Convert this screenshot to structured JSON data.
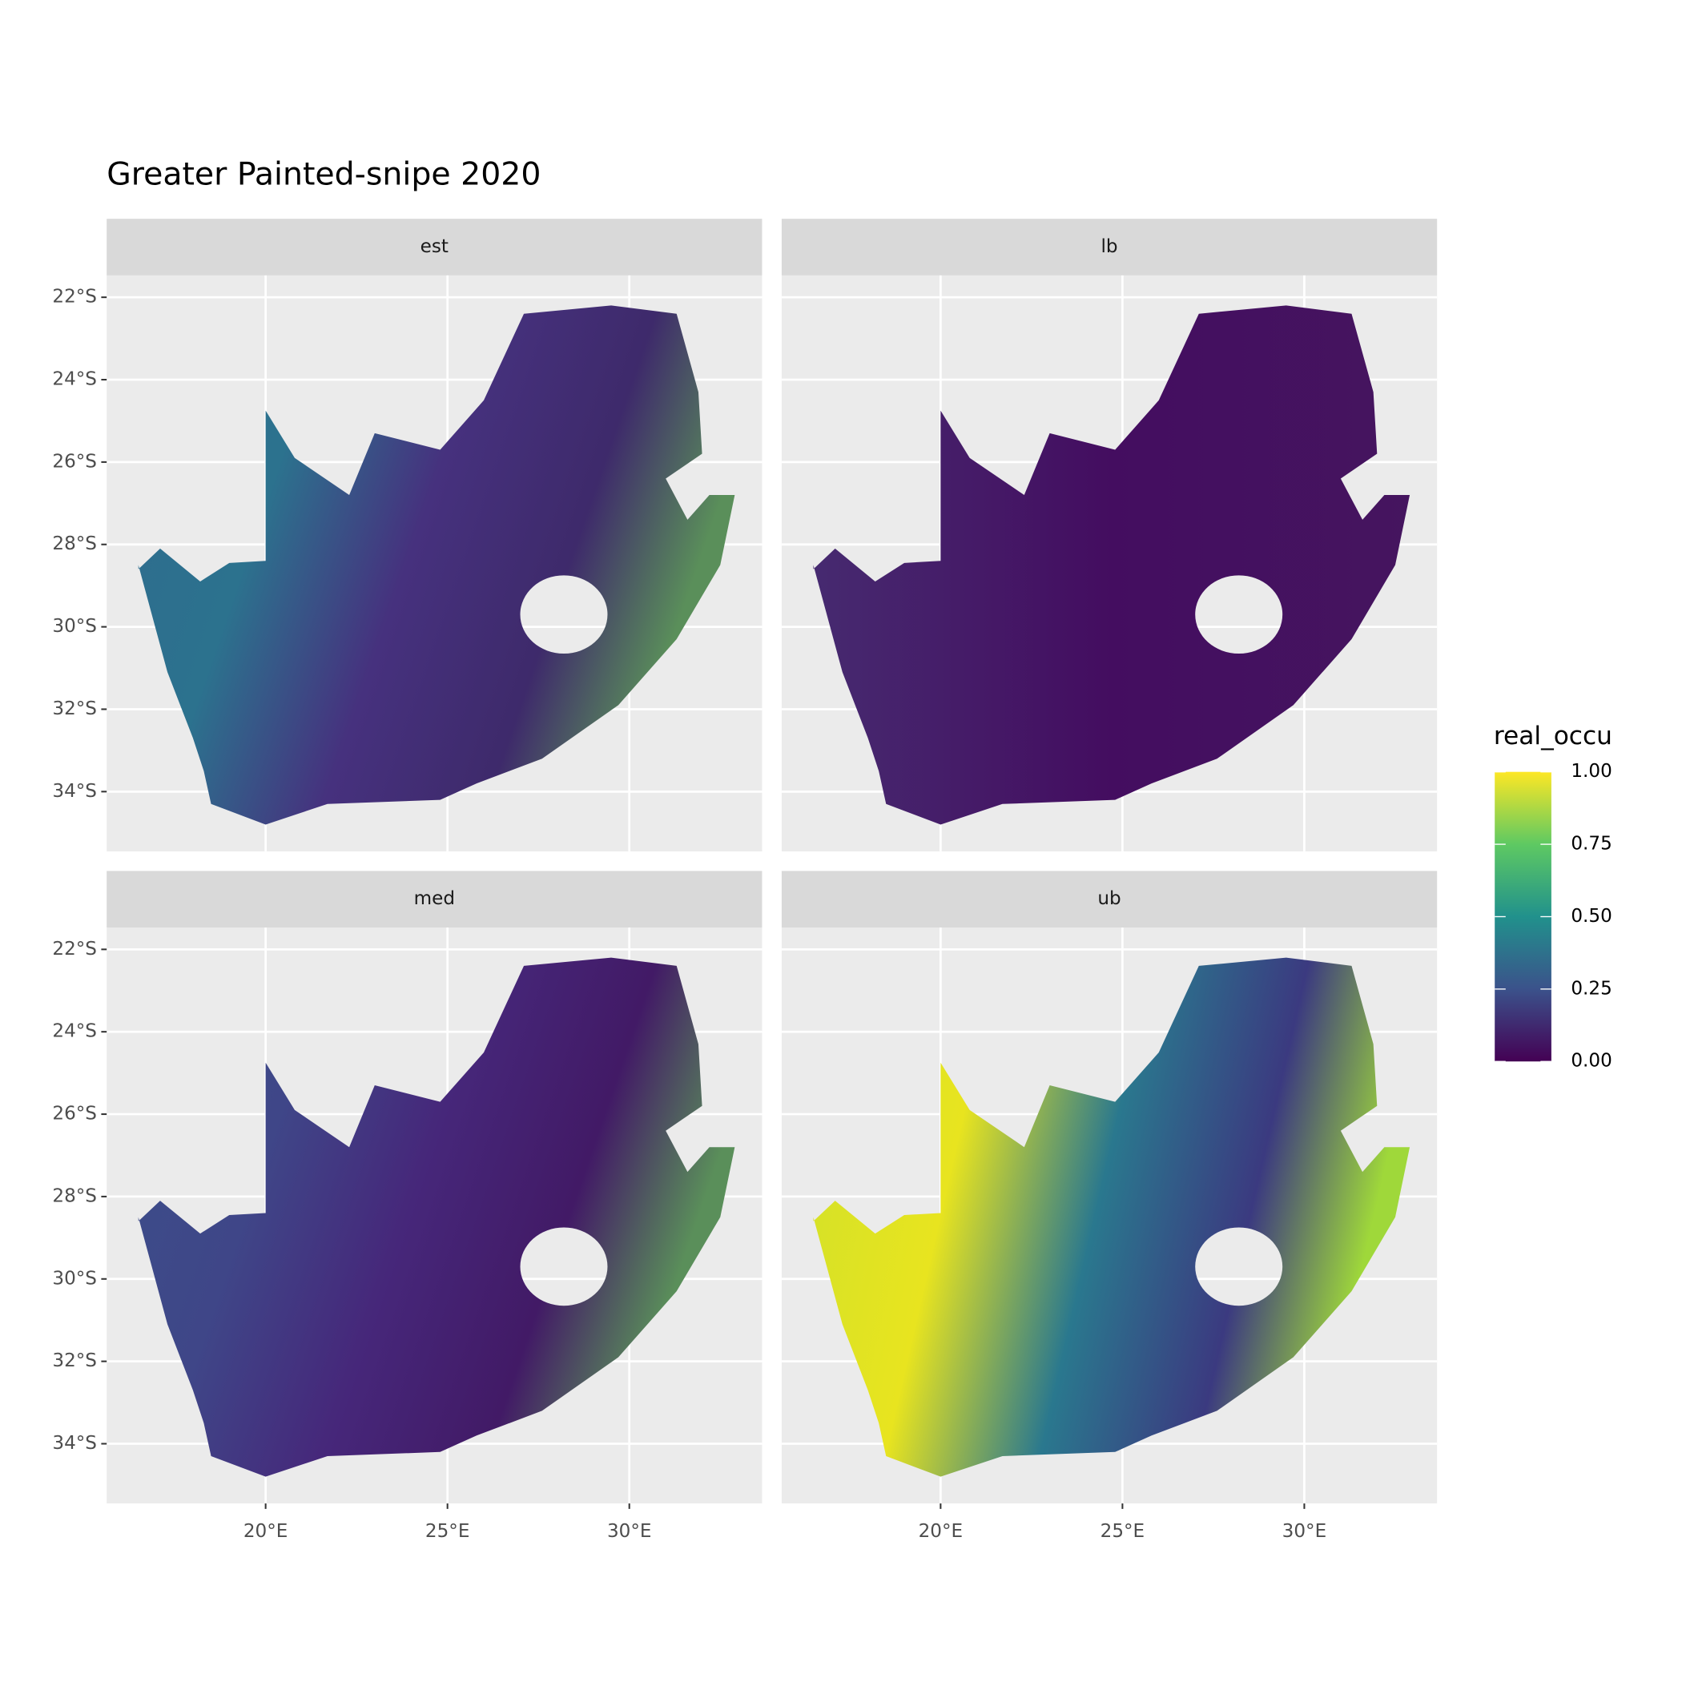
{
  "chart_data": {
    "type": "raster_map",
    "title": "Greater Painted-snipe 2020",
    "facets": [
      "est",
      "lb",
      "med",
      "ub"
    ],
    "xlim": [
      15.63,
      33.65
    ],
    "ylim": [
      -35.45,
      -21.47
    ],
    "xticks": [
      {
        "value": 20,
        "label": "20°E"
      },
      {
        "value": 25,
        "label": "25°E"
      },
      {
        "value": 30,
        "label": "30°E"
      }
    ],
    "yticks": [
      {
        "value": -22,
        "label": "22°S"
      },
      {
        "value": -24,
        "label": "24°S"
      },
      {
        "value": -26,
        "label": "26°S"
      },
      {
        "value": -28,
        "label": "28°S"
      },
      {
        "value": -30,
        "label": "30°S"
      },
      {
        "value": -32,
        "label": "32°S"
      },
      {
        "value": -34,
        "label": "34°S"
      }
    ],
    "grid": true,
    "legend": {
      "title": "real_occu",
      "lim": [
        0,
        1
      ],
      "ticks": [
        {
          "value": 0,
          "label": "0.00"
        },
        {
          "value": 0.25,
          "label": "0.25"
        },
        {
          "value": 0.5,
          "label": "0.50"
        },
        {
          "value": 0.75,
          "label": "0.75"
        },
        {
          "value": 1,
          "label": "1.00"
        }
      ],
      "colormap": [
        "#440154",
        "#3b528b",
        "#21918c",
        "#5ec962",
        "#fde725"
      ]
    }
  }
}
